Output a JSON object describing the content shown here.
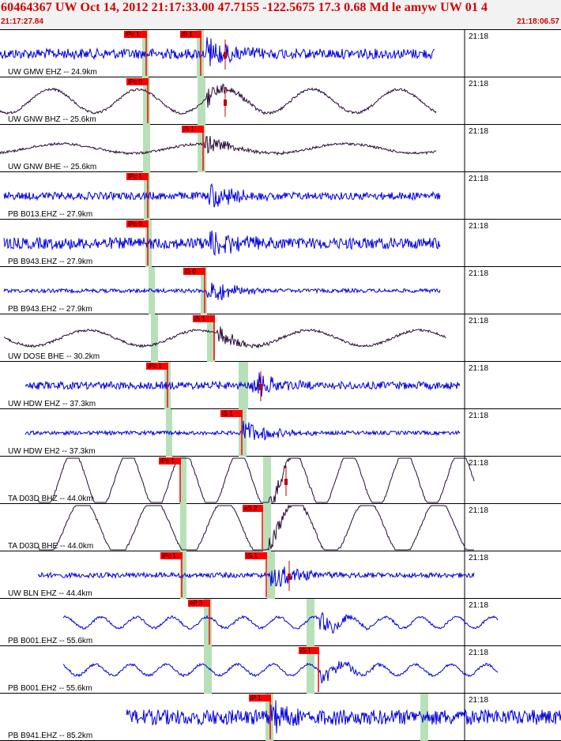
{
  "header": {
    "title": "60464367 UW Oct 14, 2012 21:17:33.00   47.7155 -122.5675 17.3 0.68 Md le amyw UW 01   4",
    "start_time": "21:17:27.84",
    "end_time": "21:18:06.57"
  },
  "colors": {
    "title": "#d40000",
    "high_freq_trace": "#0000e0",
    "long_period_trace": "#2a0a3a",
    "pick_box": "#ff0000",
    "window": "#b8e0b8"
  },
  "traces": [
    {
      "label": "UW GMW EHZ -- 24.9km",
      "time": "21:18",
      "color": "blue",
      "picks": [
        {
          "text": "iPc 1"
        },
        {
          "text": "iS 1"
        }
      ]
    },
    {
      "label": "UW GNW BHZ -- 25.6km",
      "time": "21:18",
      "color": "dark",
      "picks": [
        {
          "text": "iPc 0"
        }
      ]
    },
    {
      "label": "UW GNW BHE -- 25.6km",
      "time": "21:18",
      "color": "dark",
      "picks": [
        {
          "text": "iS 1"
        }
      ]
    },
    {
      "label": "PB B013.EHZ -- 27.9km",
      "time": "21:18",
      "color": "blue",
      "picks": [
        {
          "text": "iPc 1"
        }
      ]
    },
    {
      "label": "PB B943.EHZ -- 27.9km",
      "time": "21:18",
      "color": "blue",
      "picks": [
        {
          "text": "iPc 0"
        }
      ]
    },
    {
      "label": "PB B943.EH2 -- 27.9km",
      "time": "21:18",
      "color": "blue",
      "picks": [
        {
          "text": "iS 0"
        }
      ]
    },
    {
      "label": "UW DOSE BHE -- 30.2km",
      "time": "21:18",
      "color": "dark",
      "picks": [
        {
          "text": "iS 1"
        }
      ]
    },
    {
      "label": "UW HDW EHZ -- 37.3km",
      "time": "21:18",
      "color": "blue",
      "picks": [
        {
          "text": "iPc 1"
        }
      ]
    },
    {
      "label": "UW HDW EH2 -- 37.3km",
      "time": "21:18",
      "color": "blue",
      "picks": [
        {
          "text": "iS 1"
        }
      ]
    },
    {
      "label": "TA D03D BHZ -- 44.0km",
      "time": "21:18",
      "color": "dark",
      "picks": [
        {
          "text": "iPc 1"
        }
      ]
    },
    {
      "label": "TA D03D BHE -- 44.0km",
      "time": "21:18",
      "color": "dark",
      "picks": [
        {
          "text": "eS 2"
        }
      ]
    },
    {
      "label": "UW BLN EHZ -- 44.4km",
      "time": "21:18",
      "color": "blue",
      "picks": [
        {
          "text": "iPc 1"
        },
        {
          "text": "iS 1"
        }
      ]
    },
    {
      "label": "PB B001.EHZ -- 55.6km",
      "time": "21:18",
      "color": "blue",
      "picks": [
        {
          "text": "eP 3"
        }
      ]
    },
    {
      "label": "PB B001.EH2 -- 55.6km",
      "time": "21:18",
      "color": "blue",
      "picks": [
        {
          "text": "iS 1"
        }
      ]
    },
    {
      "label": "PB B941.EHZ -- 85.2km",
      "time": "21:18",
      "color": "blue",
      "picks": [
        {
          "text": "iP 1"
        }
      ]
    }
  ]
}
